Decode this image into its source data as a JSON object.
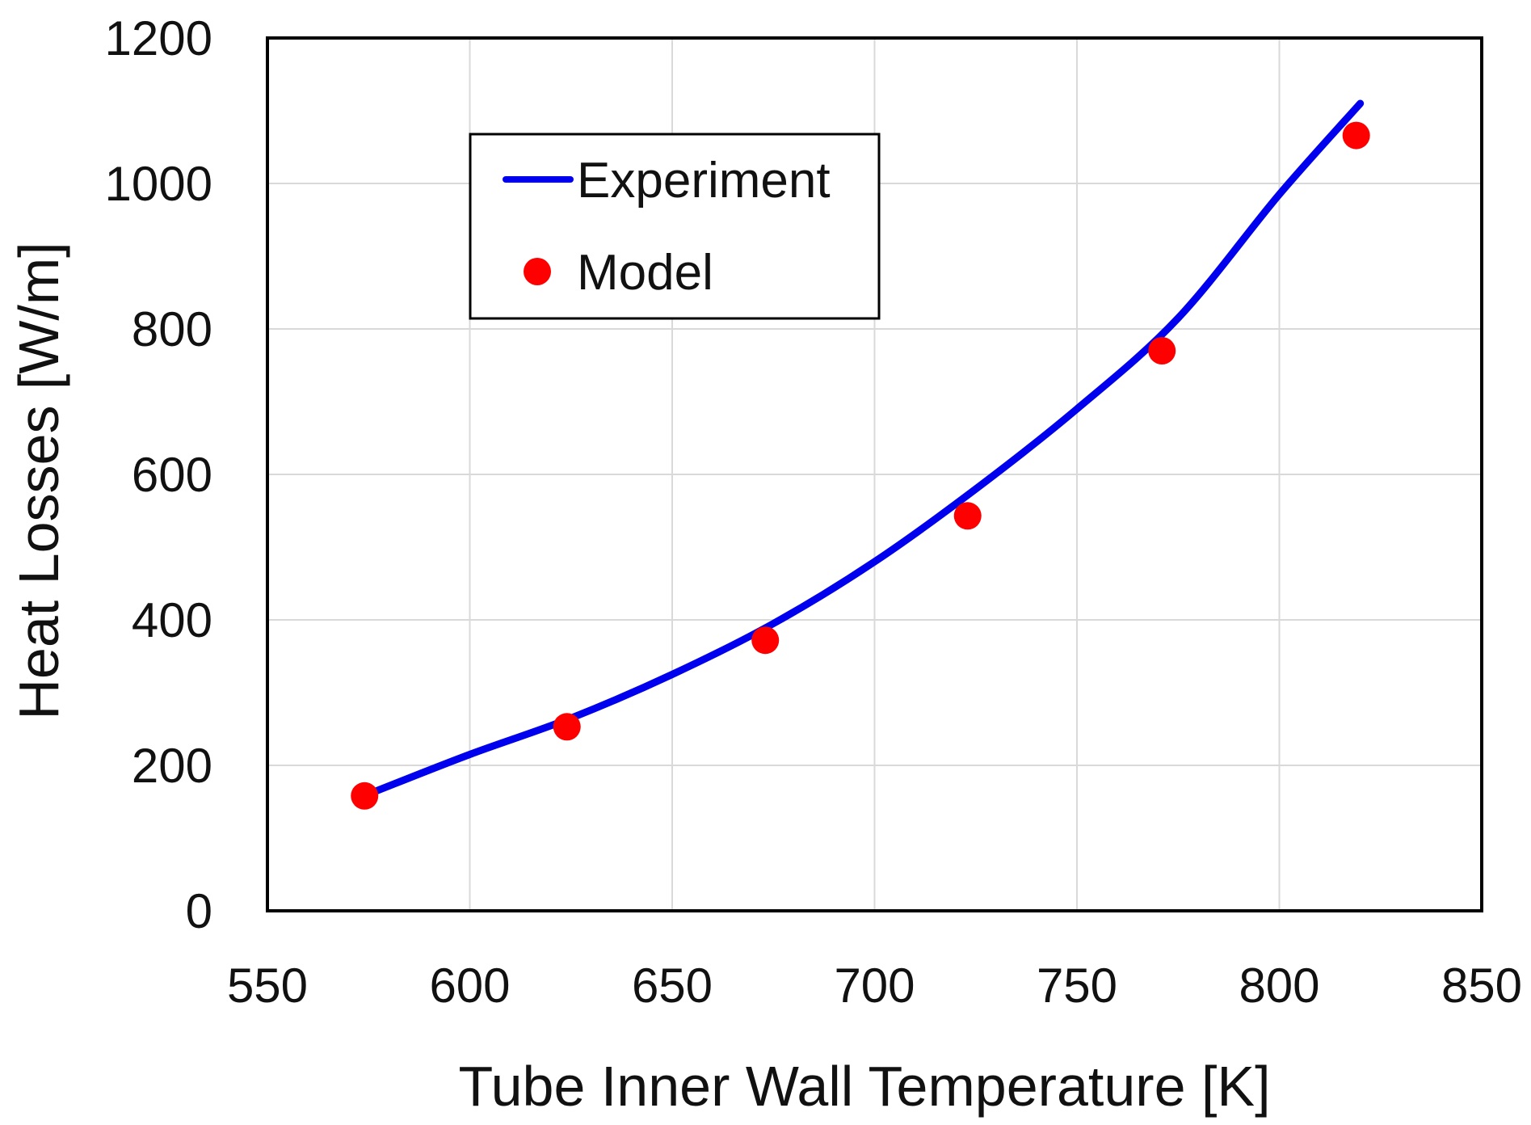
{
  "chart_data": {
    "type": "line",
    "title": "",
    "xlabel": "Tube Inner Wall Temperature [K]",
    "ylabel": "Heat Losses [W/m]",
    "xlim": [
      550,
      850
    ],
    "ylim": [
      0,
      1200
    ],
    "xticks": [
      550,
      600,
      650,
      700,
      750,
      800,
      850
    ],
    "yticks": [
      0,
      200,
      400,
      600,
      800,
      1000,
      1200
    ],
    "grid": true,
    "legend_position": "upper-left",
    "series": [
      {
        "name": "Experiment",
        "kind": "line",
        "color": "#0000ee",
        "x": [
          577,
          600,
          625,
          650,
          675,
          700,
          725,
          750,
          775,
          800,
          820
        ],
        "y": [
          165,
          215,
          265,
          325,
          395,
          480,
          580,
          690,
          815,
          985,
          1110
        ]
      },
      {
        "name": "Model",
        "kind": "scatter",
        "color": "#ff0000",
        "x": [
          574,
          624,
          673,
          723,
          771,
          819
        ],
        "y": [
          158,
          253,
          372,
          543,
          770,
          1066
        ]
      }
    ]
  }
}
